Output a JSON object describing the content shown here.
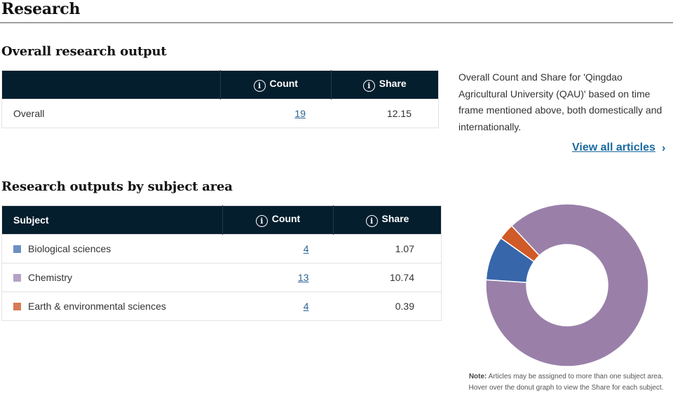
{
  "page_title": "Research",
  "overall": {
    "title": "Overall research output",
    "headers": {
      "count": "Count",
      "share": "Share"
    },
    "row": {
      "label": "Overall",
      "count": "19",
      "share": "12.15"
    }
  },
  "description": "Overall Count and Share for 'Qingdao Agricultural University (QAU)' based on time frame mentioned above, both domestically and internationally.",
  "view_all": "View all articles",
  "subject": {
    "title": "Research outputs by subject area",
    "headers": {
      "subject": "Subject",
      "count": "Count",
      "share": "Share"
    },
    "rows": [
      {
        "label": "Biological sciences",
        "count": "4",
        "share": "1.07",
        "color": "#6f8fc2"
      },
      {
        "label": "Chemistry",
        "count": "13",
        "share": "10.74",
        "color": "#b4a3c5"
      },
      {
        "label": "Earth & environmental sciences",
        "count": "4",
        "share": "0.39",
        "color": "#d77a55"
      }
    ]
  },
  "chart_data": {
    "type": "pie",
    "donut": true,
    "categories": [
      "Chemistry",
      "Biological sciences",
      "Earth & environmental sciences"
    ],
    "values": [
      10.74,
      1.07,
      0.39
    ],
    "colors": [
      "#9a80a9",
      "#3766aa",
      "#d05a28"
    ]
  },
  "note": {
    "bold": "Note:",
    "text": " Articles may be assigned to more than one subject area. Hover over the donut graph to view the Share for each subject."
  }
}
